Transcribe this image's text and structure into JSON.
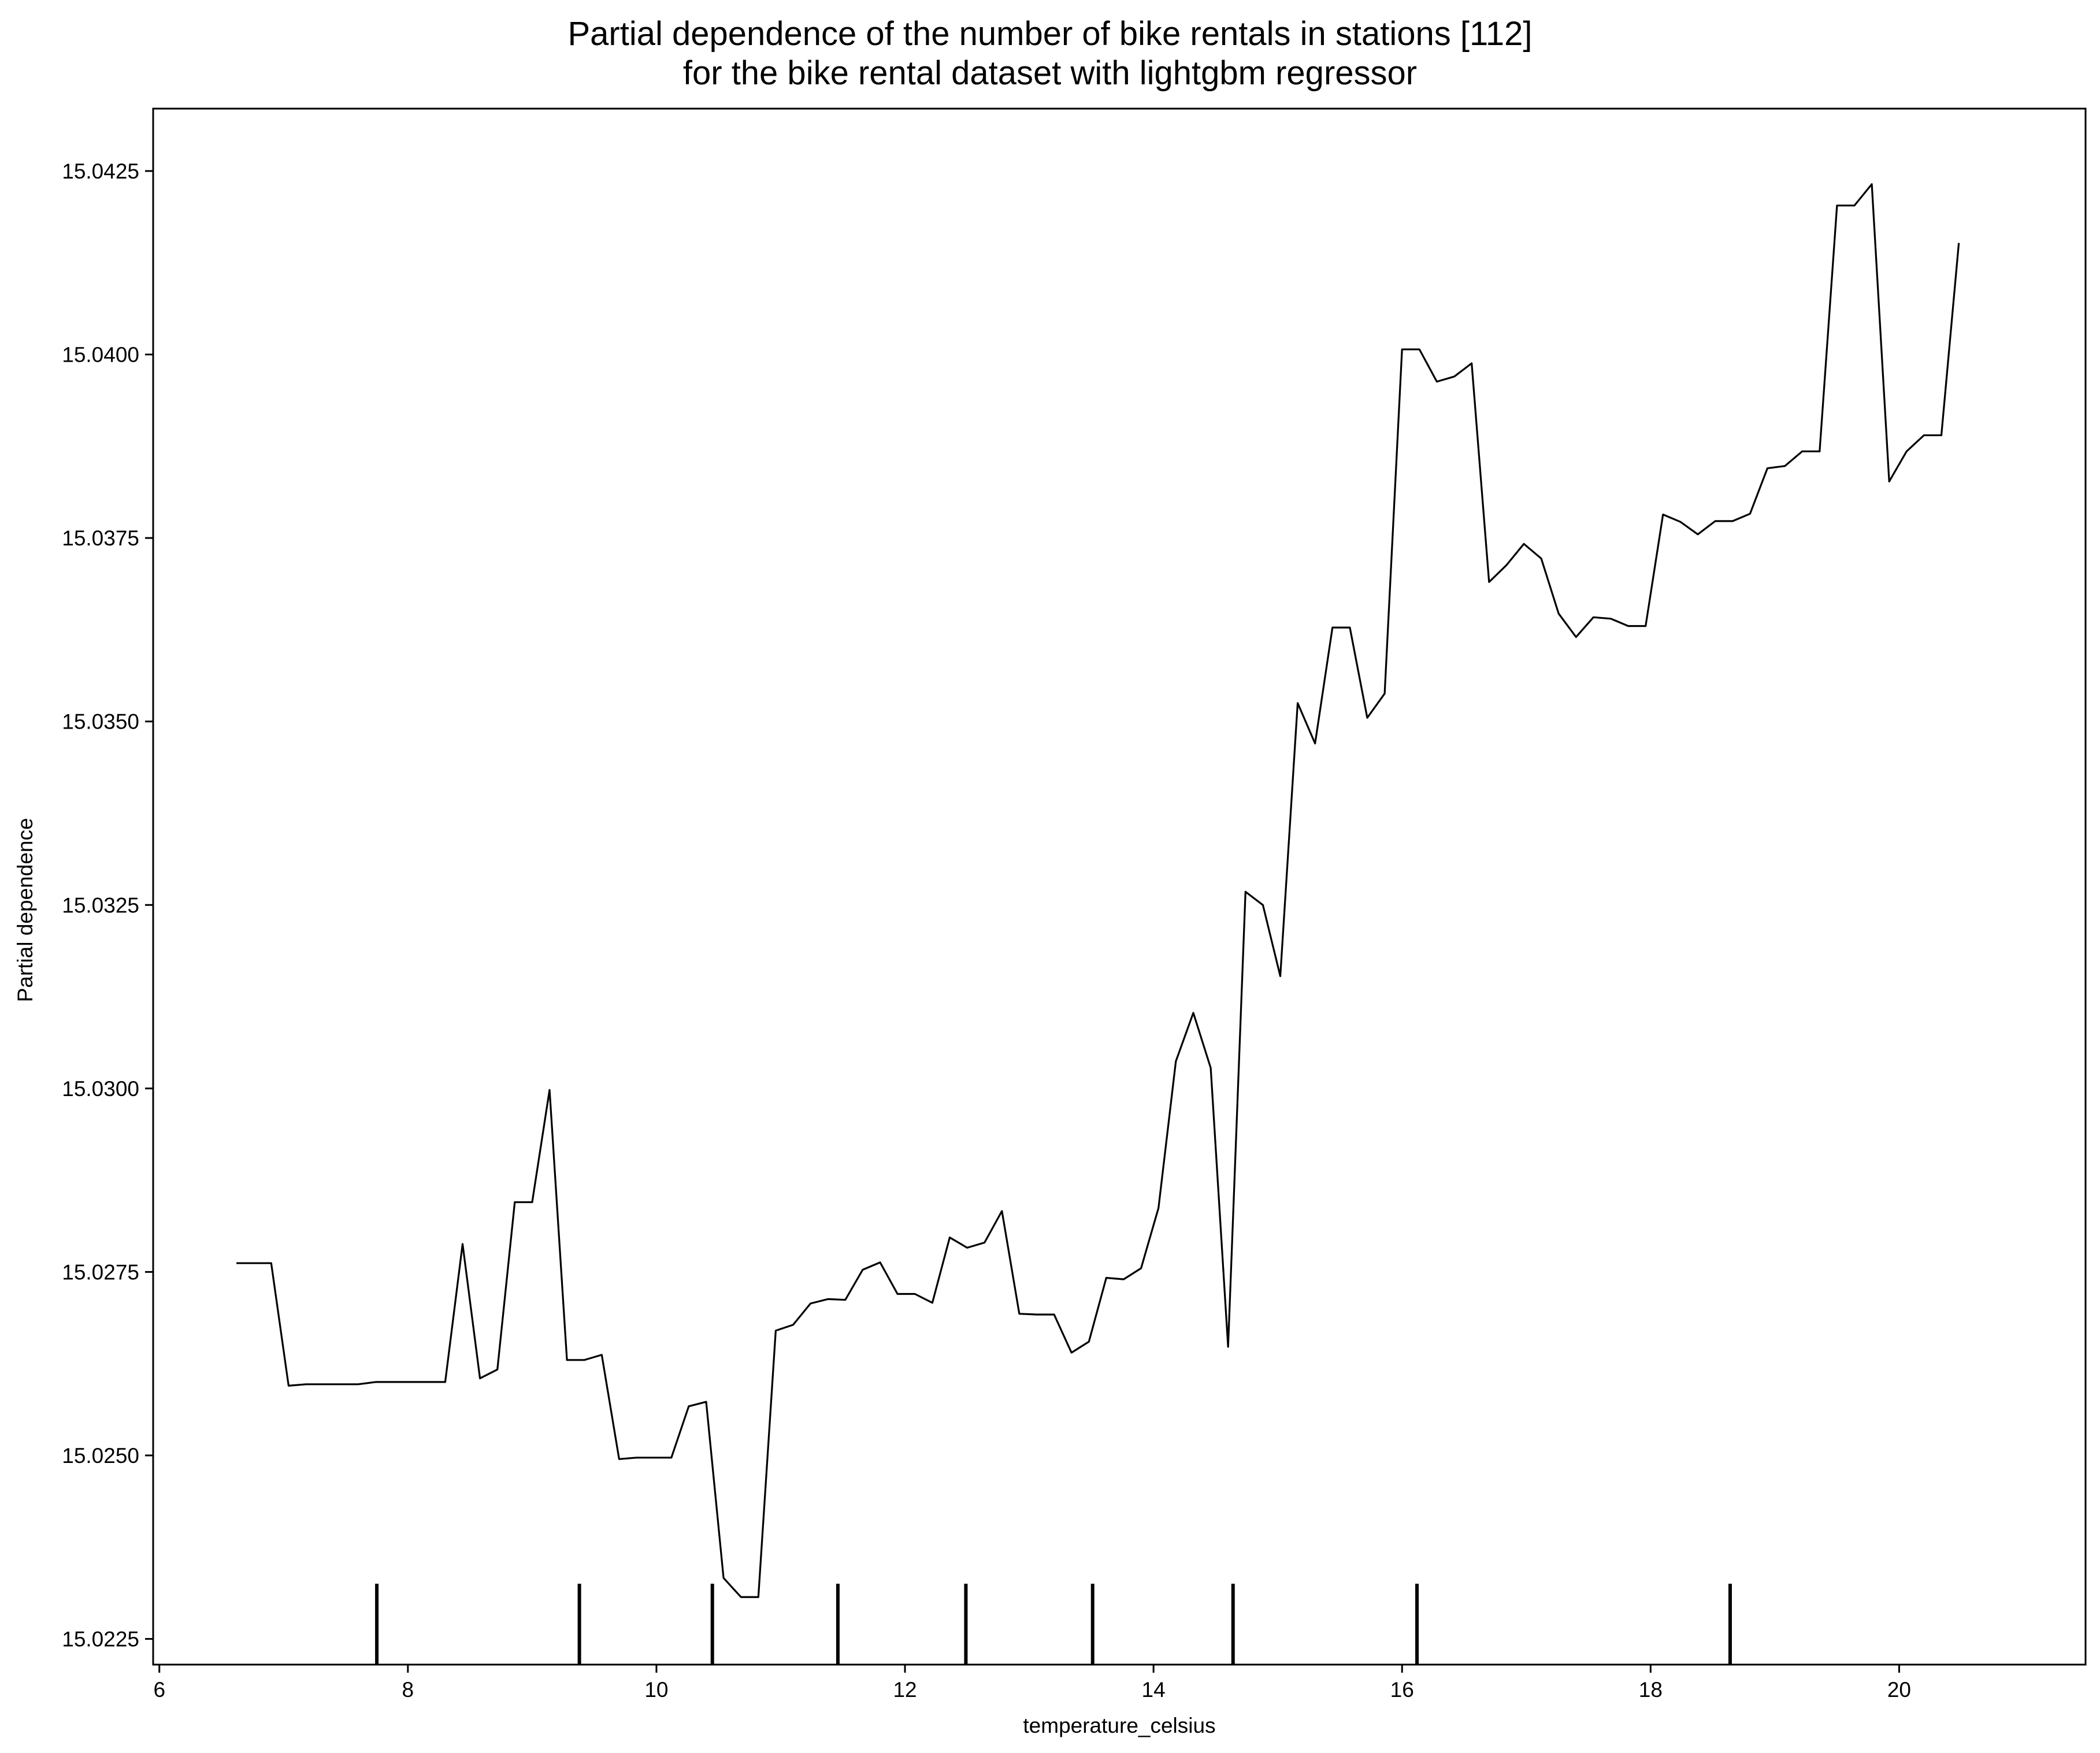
{
  "chart_data": {
    "type": "line",
    "title_lines": [
      "Partial dependence of the number of bike rentals in stations [112]",
      "for the bike rental dataset with lightgbm regressor"
    ],
    "xlabel": "temperature_celsius",
    "ylabel": "Partial dependence",
    "xlim": [
      5.95,
      21.5
    ],
    "ylim": [
      15.02215,
      15.04335
    ],
    "xticks": [
      6,
      8,
      10,
      12,
      14,
      16,
      18,
      20
    ],
    "xtick_labels": [
      "6",
      "8",
      "10",
      "12",
      "14",
      "16",
      "18",
      "20"
    ],
    "yticks": [
      15.0225,
      15.025,
      15.0275,
      15.03,
      15.0325,
      15.035,
      15.0375,
      15.04,
      15.0425
    ],
    "ytick_labels": [
      "15.0225",
      "15.0250",
      "15.0275",
      "15.0300",
      "15.0325",
      "15.0350",
      "15.0375",
      "15.0400",
      "15.0425"
    ],
    "grid": false,
    "line_color": "#000000",
    "deciles": [
      7.75,
      9.38,
      10.45,
      11.46,
      12.49,
      13.51,
      14.64,
      16.12,
      18.64
    ],
    "series": [
      {
        "x": [
          6.62,
          6.9,
          7.04,
          7.18,
          7.32,
          7.46,
          7.6,
          7.74,
          7.88,
          8.02,
          8.16,
          8.3,
          8.44,
          8.58,
          8.72,
          8.86,
          9.0,
          9.14,
          9.28,
          9.42,
          9.56,
          9.7,
          9.84,
          9.98,
          10.12,
          10.26,
          10.4,
          10.54,
          10.68,
          10.82,
          10.96,
          11.1,
          11.24,
          11.38,
          11.52,
          11.66,
          11.8,
          11.94,
          12.08,
          12.22,
          12.36,
          12.5,
          12.64,
          12.78,
          12.92,
          13.06,
          13.2,
          13.34,
          13.48,
          13.62,
          13.76,
          13.9,
          14.04,
          14.18,
          14.32,
          14.46,
          14.6,
          14.74,
          14.88,
          15.02,
          15.16,
          15.3,
          15.44,
          15.58,
          15.72,
          15.86,
          16.0,
          16.14,
          16.28,
          16.42,
          16.56,
          16.7,
          16.84,
          16.98,
          17.12,
          17.26,
          17.4,
          17.54,
          17.68,
          17.82,
          17.96,
          18.1,
          18.24,
          18.38,
          18.52,
          18.66,
          18.8,
          18.94,
          19.08,
          19.22,
          19.36,
          19.5,
          19.64,
          19.78,
          19.92,
          20.06,
          20.2,
          20.34,
          20.48
        ],
        "y": [
          15.02762,
          15.02762,
          15.02595,
          15.02597,
          15.02597,
          15.02597,
          15.02597,
          15.026,
          15.026,
          15.026,
          15.026,
          15.026,
          15.02788,
          15.02605,
          15.02617,
          15.02845,
          15.02845,
          15.02998,
          15.0263,
          15.0263,
          15.02637,
          15.02495,
          15.02497,
          15.02497,
          15.02497,
          15.02567,
          15.02573,
          15.02333,
          15.02307,
          15.02307,
          15.0267,
          15.02678,
          15.02707,
          15.02713,
          15.02712,
          15.02753,
          15.02763,
          15.0272,
          15.0272,
          15.02708,
          15.02797,
          15.02783,
          15.0279,
          15.02833,
          15.02693,
          15.02692,
          15.02692,
          15.0264,
          15.02655,
          15.02742,
          15.0274,
          15.02755,
          15.02837,
          15.03037,
          15.03103,
          15.03028,
          15.02648,
          15.03268,
          15.0325,
          15.03153,
          15.03525,
          15.0347,
          15.03628,
          15.03628,
          15.03505,
          15.03538,
          15.04007,
          15.04007,
          15.03963,
          15.0397,
          15.03988,
          15.0369,
          15.03713,
          15.03742,
          15.03722,
          15.03647,
          15.03615,
          15.03642,
          15.0364,
          15.0363,
          15.0363,
          15.03782,
          15.03772,
          15.03755,
          15.03773,
          15.03773,
          15.03783,
          15.03845,
          15.03848,
          15.03868,
          15.03868,
          15.04203,
          15.04203,
          15.04232,
          15.03827,
          15.03868,
          15.0389,
          15.0389,
          15.04152
        ]
      }
    ]
  }
}
